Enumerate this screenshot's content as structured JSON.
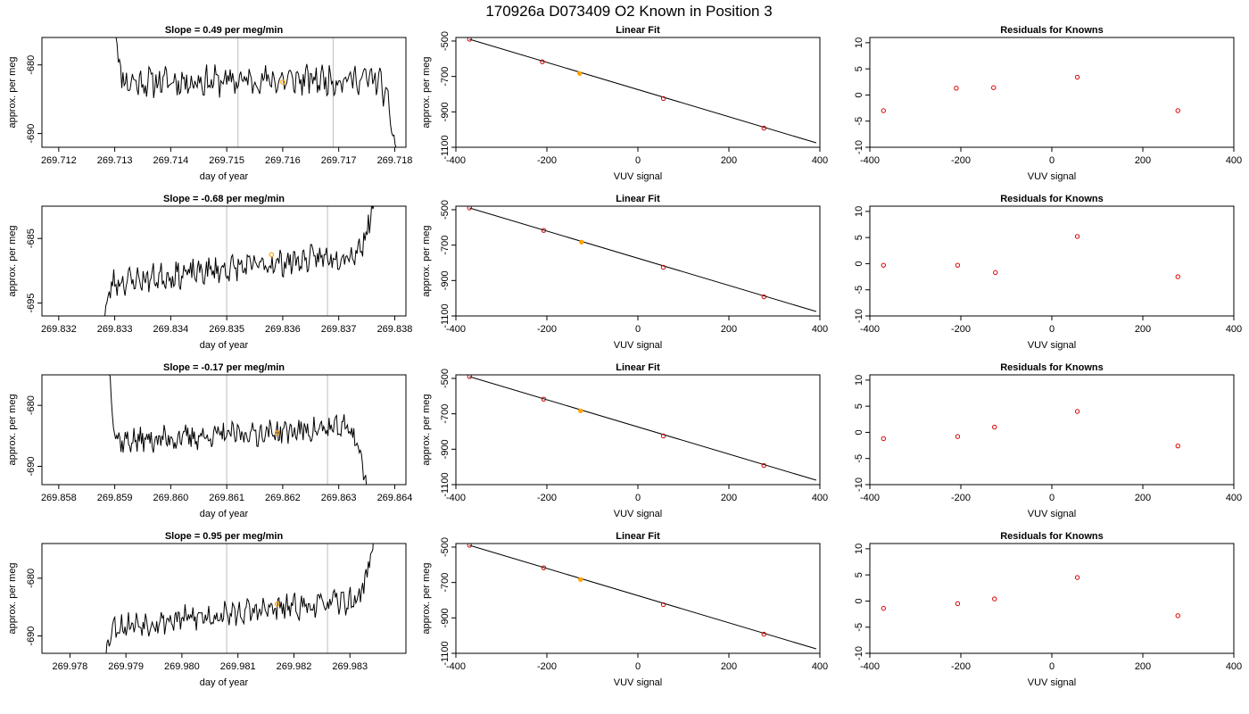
{
  "figure_title": "170926a     D073409   O2 Known in Position  3",
  "colors": {
    "line": "#000000",
    "guide": "#c8c8c8",
    "highlight": "#ffa500",
    "residual_point": "#dd0000",
    "fit_point": "#cc0000"
  },
  "chart_data": [
    {
      "type": "line",
      "title": "Slope =  0.49  per meg/min",
      "xlabel": "day of year",
      "ylabel": "approx. per meg",
      "xlim": [
        269.7117,
        269.7182
      ],
      "ylim": [
        -692,
        -676
      ],
      "xticks": [
        "269.712",
        "269.713",
        "269.714",
        "269.715",
        "269.716",
        "269.717",
        "269.718"
      ],
      "yticks": [
        "-680",
        "-690"
      ],
      "vlines": [
        269.7152,
        269.7169
      ],
      "highlight_point": {
        "x": 269.716,
        "y": -682.5
      },
      "series_params": {
        "x_start": 269.713,
        "x_end": 269.71805,
        "start_high": -674,
        "end_low": -694,
        "level_start": -682.5,
        "level_end": -682.0,
        "noise": 1.6,
        "seed": 11
      }
    },
    {
      "type": "scatter",
      "title": "Linear Fit",
      "xlabel": "VUV signal",
      "ylabel": "approx. per meg",
      "xlim": [
        -400,
        400
      ],
      "ylim": [
        -1100,
        -480
      ],
      "xticks": [
        "-400",
        "-200",
        "0",
        "200",
        "400"
      ],
      "yticks": [
        "-500",
        "-700",
        "-900",
        "-1100"
      ],
      "points": [
        [
          -370,
          -490
        ],
        [
          -210,
          -617
        ],
        [
          -128,
          -683
        ],
        [
          56,
          -825
        ],
        [
          277,
          -992
        ]
      ],
      "highlight_index": 2,
      "fit_line": [
        [
          -370,
          -490
        ],
        [
          392,
          -1075
        ]
      ]
    },
    {
      "type": "scatter",
      "title": "Residuals for Knowns",
      "xlabel": "VUV signal",
      "ylim": [
        -10,
        11
      ],
      "xlim": [
        -400,
        400
      ],
      "xticks": [
        "-400",
        "-200",
        "0",
        "200",
        "400"
      ],
      "yticks": [
        "10",
        "5",
        "0",
        "-5",
        "-10"
      ],
      "points": [
        [
          -370,
          -3.0
        ],
        [
          -210,
          1.3
        ],
        [
          -128,
          1.4
        ],
        [
          56,
          3.4
        ],
        [
          277,
          -3.0
        ]
      ]
    },
    {
      "type": "line",
      "title": "Slope =  -0.68  per meg/min",
      "xlabel": "day of year",
      "ylabel": "approx. per meg",
      "xlim": [
        269.8317,
        269.8382
      ],
      "ylim": [
        -697,
        -680
      ],
      "xticks": [
        "269.832",
        "269.833",
        "269.834",
        "269.835",
        "269.836",
        "269.837",
        "269.838"
      ],
      "yticks": [
        "-685",
        "-695"
      ],
      "vlines": [
        269.835,
        269.8368
      ],
      "highlight_point": {
        "x": 269.8358,
        "y": -687.5
      },
      "series_params": {
        "x_start": 269.8328,
        "x_end": 269.83765,
        "start_high": -699,
        "end_low": -678,
        "level_start": -692.0,
        "level_end": -687.0,
        "noise": 1.5,
        "seed": 23,
        "reverse": true
      }
    },
    {
      "type": "scatter",
      "title": "Linear Fit",
      "xlabel": "VUV signal",
      "ylabel": "approx. per meg",
      "xlim": [
        -400,
        400
      ],
      "ylim": [
        -1100,
        -480
      ],
      "xticks": [
        "-400",
        "-200",
        "0",
        "200",
        "400"
      ],
      "yticks": [
        "-500",
        "-700",
        "-900",
        "-1100"
      ],
      "points": [
        [
          -370,
          -490
        ],
        [
          -207,
          -617
        ],
        [
          -124,
          -683
        ],
        [
          56,
          -825
        ],
        [
          277,
          -992
        ]
      ],
      "highlight_index": 2,
      "fit_line": [
        [
          -370,
          -490
        ],
        [
          392,
          -1075
        ]
      ]
    },
    {
      "type": "scatter",
      "title": "Residuals for Knowns",
      "xlabel": "VUV signal",
      "ylim": [
        -10,
        11
      ],
      "xlim": [
        -400,
        400
      ],
      "xticks": [
        "-400",
        "-200",
        "0",
        "200",
        "400"
      ],
      "yticks": [
        "10",
        "5",
        "0",
        "-5",
        "-10"
      ],
      "points": [
        [
          -370,
          -0.3
        ],
        [
          -207,
          -0.3
        ],
        [
          -124,
          -1.7
        ],
        [
          56,
          5.2
        ],
        [
          277,
          -2.5
        ]
      ]
    },
    {
      "type": "line",
      "title": "Slope =  -0.17  per meg/min",
      "xlabel": "day of year",
      "ylabel": "approx. per meg",
      "xlim": [
        269.8577,
        269.8642
      ],
      "ylim": [
        -693,
        -675
      ],
      "xticks": [
        "269.858",
        "269.859",
        "269.860",
        "269.861",
        "269.862",
        "269.863",
        "269.864"
      ],
      "yticks": [
        "-680",
        "-690"
      ],
      "vlines": [
        269.861,
        269.8628
      ],
      "highlight_point": {
        "x": 269.8619,
        "y": -684.5
      },
      "series_params": {
        "x_start": 269.8589,
        "x_end": 269.86352,
        "start_high": -674,
        "end_low": -695,
        "level_start": -686.0,
        "level_end": -683.5,
        "noise": 1.5,
        "seed": 37
      }
    },
    {
      "type": "scatter",
      "title": "Linear Fit",
      "xlabel": "VUV signal",
      "ylabel": "approx. per meg",
      "xlim": [
        -400,
        400
      ],
      "ylim": [
        -1100,
        -480
      ],
      "xticks": [
        "-400",
        "-200",
        "0",
        "200",
        "400"
      ],
      "yticks": [
        "-500",
        "-700",
        "-900",
        "-1100"
      ],
      "points": [
        [
          -370,
          -490
        ],
        [
          -207,
          -617
        ],
        [
          -126,
          -683
        ],
        [
          56,
          -825
        ],
        [
          277,
          -992
        ]
      ],
      "highlight_index": 2,
      "fit_line": [
        [
          -370,
          -490
        ],
        [
          392,
          -1075
        ]
      ]
    },
    {
      "type": "scatter",
      "title": "Residuals for Knowns",
      "xlabel": "VUV signal",
      "ylim": [
        -10,
        11
      ],
      "xlim": [
        -400,
        400
      ],
      "xticks": [
        "-400",
        "-200",
        "0",
        "200",
        "400"
      ],
      "yticks": [
        "10",
        "5",
        "0",
        "-5",
        "-10"
      ],
      "points": [
        [
          -370,
          -1.2
        ],
        [
          -207,
          -0.8
        ],
        [
          -126,
          1.0
        ],
        [
          56,
          4.0
        ],
        [
          277,
          -2.6
        ]
      ]
    },
    {
      "type": "line",
      "title": "Slope =  0.95  per meg/min",
      "xlabel": "day of year",
      "ylabel": "approx. per meg",
      "xlim": [
        269.9775,
        269.984
      ],
      "ylim": [
        -693,
        -674
      ],
      "xticks": [
        "269.978",
        "269.979",
        "269.980",
        "269.981",
        "269.982",
        "269.983"
      ],
      "yticks": [
        "-680",
        "-690"
      ],
      "vlines": [
        269.9808,
        269.9826
      ],
      "highlight_point": {
        "x": 269.9817,
        "y": -684.5
      },
      "series_params": {
        "x_start": 269.9786,
        "x_end": 269.98345,
        "start_high": -696,
        "end_low": -672,
        "level_start": -688.5,
        "level_end": -683.5,
        "noise": 1.6,
        "seed": 53,
        "reverse": true
      }
    },
    {
      "type": "scatter",
      "title": "Linear Fit",
      "xlabel": "VUV signal",
      "ylabel": "approx. per meg",
      "xlim": [
        -400,
        400
      ],
      "ylim": [
        -1100,
        -480
      ],
      "xticks": [
        "-400",
        "-200",
        "0",
        "200",
        "400"
      ],
      "yticks": [
        "-500",
        "-700",
        "-900",
        "-1100"
      ],
      "points": [
        [
          -370,
          -490
        ],
        [
          -207,
          -617
        ],
        [
          -126,
          -683
        ],
        [
          56,
          -825
        ],
        [
          277,
          -992
        ]
      ],
      "highlight_index": 2,
      "fit_line": [
        [
          -370,
          -490
        ],
        [
          392,
          -1075
        ]
      ]
    },
    {
      "type": "scatter",
      "title": "Residuals for Knowns",
      "xlabel": "VUV signal",
      "ylim": [
        -10,
        11
      ],
      "xlim": [
        -400,
        400
      ],
      "xticks": [
        "-400",
        "-200",
        "0",
        "200",
        "400"
      ],
      "yticks": [
        "10",
        "5",
        "0",
        "-5",
        "-10"
      ],
      "points": [
        [
          -370,
          -1.4
        ],
        [
          -207,
          -0.5
        ],
        [
          -126,
          0.4
        ],
        [
          56,
          4.5
        ],
        [
          277,
          -2.8
        ]
      ]
    }
  ]
}
